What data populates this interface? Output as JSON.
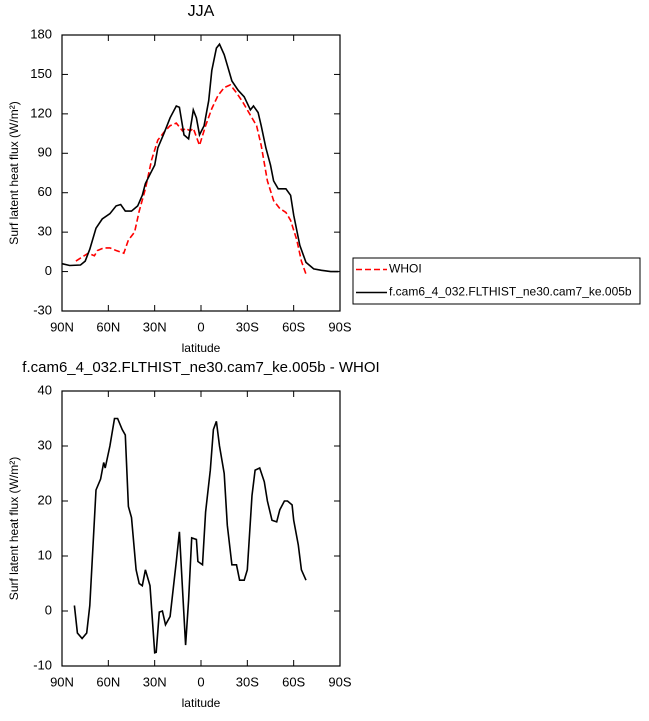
{
  "chart_data": [
    {
      "type": "line",
      "title": "JJA",
      "x_label": "latitude",
      "y_label": "Surf latent heat flux (W/m²)",
      "xlim": [
        90,
        -90
      ],
      "xticks": [
        {
          "value": 90,
          "label": "90N"
        },
        {
          "value": 60,
          "label": "60N"
        },
        {
          "value": 30,
          "label": "30N"
        },
        0,
        {
          "value": -30,
          "label": "30S"
        },
        {
          "value": -60,
          "label": "60S"
        },
        {
          "value": -90,
          "label": "90S"
        }
      ],
      "ylim": [
        -30,
        180
      ],
      "yticks": [
        -30,
        0,
        30,
        60,
        90,
        120,
        150,
        180
      ],
      "legend": "right",
      "series": [
        {
          "name": "WHOI",
          "color": "#ff0000",
          "linestyle": "dashed",
          "x": [
            81,
            77,
            73,
            69,
            67,
            63,
            59,
            55,
            50,
            47,
            43,
            40,
            36,
            32,
            28,
            24,
            20,
            16,
            12,
            10,
            7,
            5,
            1,
            -3,
            -7,
            -11,
            -15,
            -19,
            -23,
            -27,
            -32,
            -36,
            -39,
            -43,
            -47,
            -51,
            -55,
            -58,
            -62,
            -65,
            -68
          ],
          "values": [
            8,
            11,
            14,
            12,
            16,
            18,
            18,
            16,
            14,
            24,
            30,
            46,
            63,
            85,
            100,
            106,
            111,
            113,
            107,
            109,
            107,
            109,
            96,
            111,
            124,
            134,
            140,
            142,
            136,
            129,
            119,
            111,
            96,
            69,
            54,
            48,
            45,
            39,
            24,
            8,
            -2
          ]
        },
        {
          "name": "f.cam6_4_032.FLTHIST_ne30.cam7_ke.005b",
          "color": "#000000",
          "linestyle": "solid",
          "x": [
            90,
            85,
            78,
            75,
            72,
            68,
            64,
            59,
            55,
            52,
            49,
            45,
            41,
            38,
            36,
            33,
            30,
            28,
            24,
            20,
            16,
            14,
            11,
            8,
            6,
            5,
            3,
            1,
            -2,
            -5,
            -7,
            -10,
            -12,
            -15,
            -17,
            -20,
            -24,
            -28,
            -32,
            -34,
            -37,
            -39,
            -42,
            -45,
            -47,
            -50,
            -55,
            -58,
            -60,
            -64,
            -68,
            -73,
            -78,
            -84,
            -89
          ],
          "values": [
            6,
            4.6,
            5,
            8,
            17,
            33,
            40,
            44,
            50,
            51,
            46,
            46,
            50,
            58,
            67,
            74,
            81,
            94,
            105,
            117,
            126,
            125,
            104,
            101,
            115,
            123,
            117,
            104,
            111,
            130,
            153,
            170,
            173,
            165,
            157,
            145,
            138,
            133,
            123,
            126,
            121,
            111,
            94,
            81,
            69,
            63,
            63,
            58,
            43,
            20,
            7,
            2,
            1,
            0,
            0
          ]
        }
      ]
    },
    {
      "type": "line",
      "title": "f.cam6_4_032.FLTHIST_ne30.cam7_ke.005b - WHOI",
      "x_label": "latitude",
      "y_label": "Surf latent heat flux (W/m²)",
      "xlim": [
        90,
        -90
      ],
      "xticks": [
        {
          "value": 90,
          "label": "90N"
        },
        {
          "value": 60,
          "label": "60N"
        },
        {
          "value": 30,
          "label": "30N"
        },
        0,
        {
          "value": -30,
          "label": "30S"
        },
        {
          "value": -60,
          "label": "60S"
        },
        {
          "value": -90,
          "label": "90S"
        }
      ],
      "ylim": [
        -10,
        40
      ],
      "yticks": [
        -10,
        0,
        10,
        20,
        30,
        40
      ],
      "series": [
        {
          "color": "#000000",
          "linestyle": "solid",
          "x": [
            82,
            80,
            77,
            74,
            72,
            68,
            65,
            63,
            62,
            59,
            56,
            54,
            51,
            49,
            47,
            45,
            42,
            40,
            38,
            36,
            33,
            30,
            29,
            27,
            25,
            23,
            20,
            16,
            14,
            12,
            10,
            8,
            6,
            3,
            2,
            -1,
            -3,
            -6,
            -8,
            -10,
            -12,
            -15,
            -17,
            -20,
            -23,
            -25,
            -28,
            -30,
            -33,
            -35,
            -38,
            -41,
            -43,
            -46,
            -49,
            -51,
            -54,
            -56,
            -59,
            -60,
            -63,
            -65,
            -68
          ],
          "values": [
            1,
            -4,
            -5,
            -4,
            1,
            22,
            24,
            27,
            26,
            30,
            35,
            35,
            33,
            32,
            19,
            17,
            7.5,
            5,
            4.6,
            7.5,
            4.6,
            -7.6,
            -7.5,
            -0.2,
            0,
            -2.5,
            -1,
            9,
            14.4,
            4,
            -6.2,
            2,
            13.3,
            13,
            9,
            8.4,
            18,
            25.6,
            33,
            34.5,
            30,
            25,
            15.6,
            8.4,
            8.4,
            5.6,
            5.6,
            7.5,
            21,
            25.6,
            26,
            23.5,
            20,
            16.5,
            16.2,
            18.4,
            20,
            20,
            19.3,
            16.5,
            12,
            7.5,
            5.6
          ]
        }
      ]
    }
  ]
}
